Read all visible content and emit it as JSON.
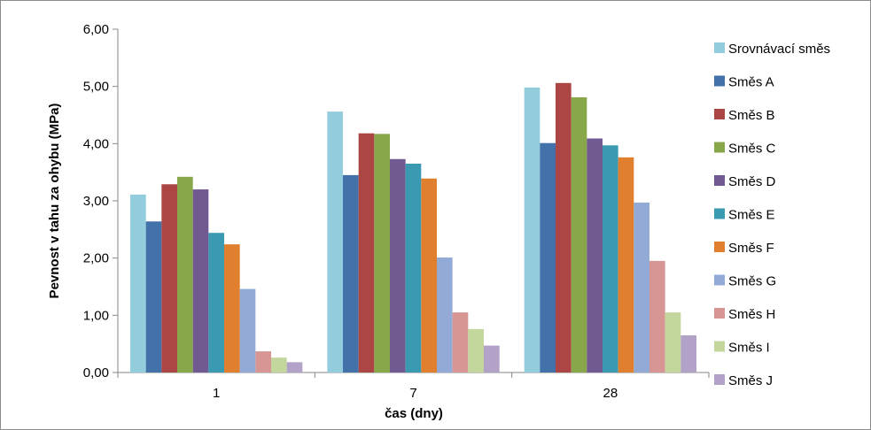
{
  "chart_data": {
    "type": "bar",
    "title": "",
    "xlabel": "čas (dny)",
    "ylabel": "Pevnost v tahu za ohybu (MPa)",
    "categories": [
      "1",
      "7",
      "28"
    ],
    "ylim": [
      0,
      6
    ],
    "yticks": [
      "0,00",
      "1,00",
      "2,00",
      "3,00",
      "4,00",
      "5,00",
      "6,00"
    ],
    "grid": false,
    "legend_position": "right",
    "series": [
      {
        "name": "Srovnávací směs",
        "color": "#93CDDD",
        "values": [
          3.11,
          4.56,
          4.98
        ]
      },
      {
        "name": "Směs A",
        "color": "#4372AA",
        "values": [
          2.64,
          3.45,
          4.01
        ]
      },
      {
        "name": "Směs B",
        "color": "#AB4644",
        "values": [
          3.29,
          4.18,
          5.06
        ]
      },
      {
        "name": "Směs C",
        "color": "#88A64A",
        "values": [
          3.42,
          4.17,
          4.81
        ]
      },
      {
        "name": "Směs D",
        "color": "#715A92",
        "values": [
          3.2,
          3.73,
          4.09
        ]
      },
      {
        "name": "Směs E",
        "color": "#3A9AB2",
        "values": [
          2.44,
          3.65,
          3.97
        ]
      },
      {
        "name": "Směs F",
        "color": "#E07F2E",
        "values": [
          2.24,
          3.39,
          3.76
        ]
      },
      {
        "name": "Směs G",
        "color": "#94AAD6",
        "values": [
          1.46,
          2.01,
          2.97
        ]
      },
      {
        "name": "Směs H",
        "color": "#D79694",
        "values": [
          0.37,
          1.05,
          1.95
        ]
      },
      {
        "name": "Směs I",
        "color": "#C3D69B",
        "values": [
          0.26,
          0.76,
          1.05
        ]
      },
      {
        "name": "Směs J",
        "color": "#B2A2C7",
        "values": [
          0.18,
          0.47,
          0.65
        ]
      }
    ]
  }
}
